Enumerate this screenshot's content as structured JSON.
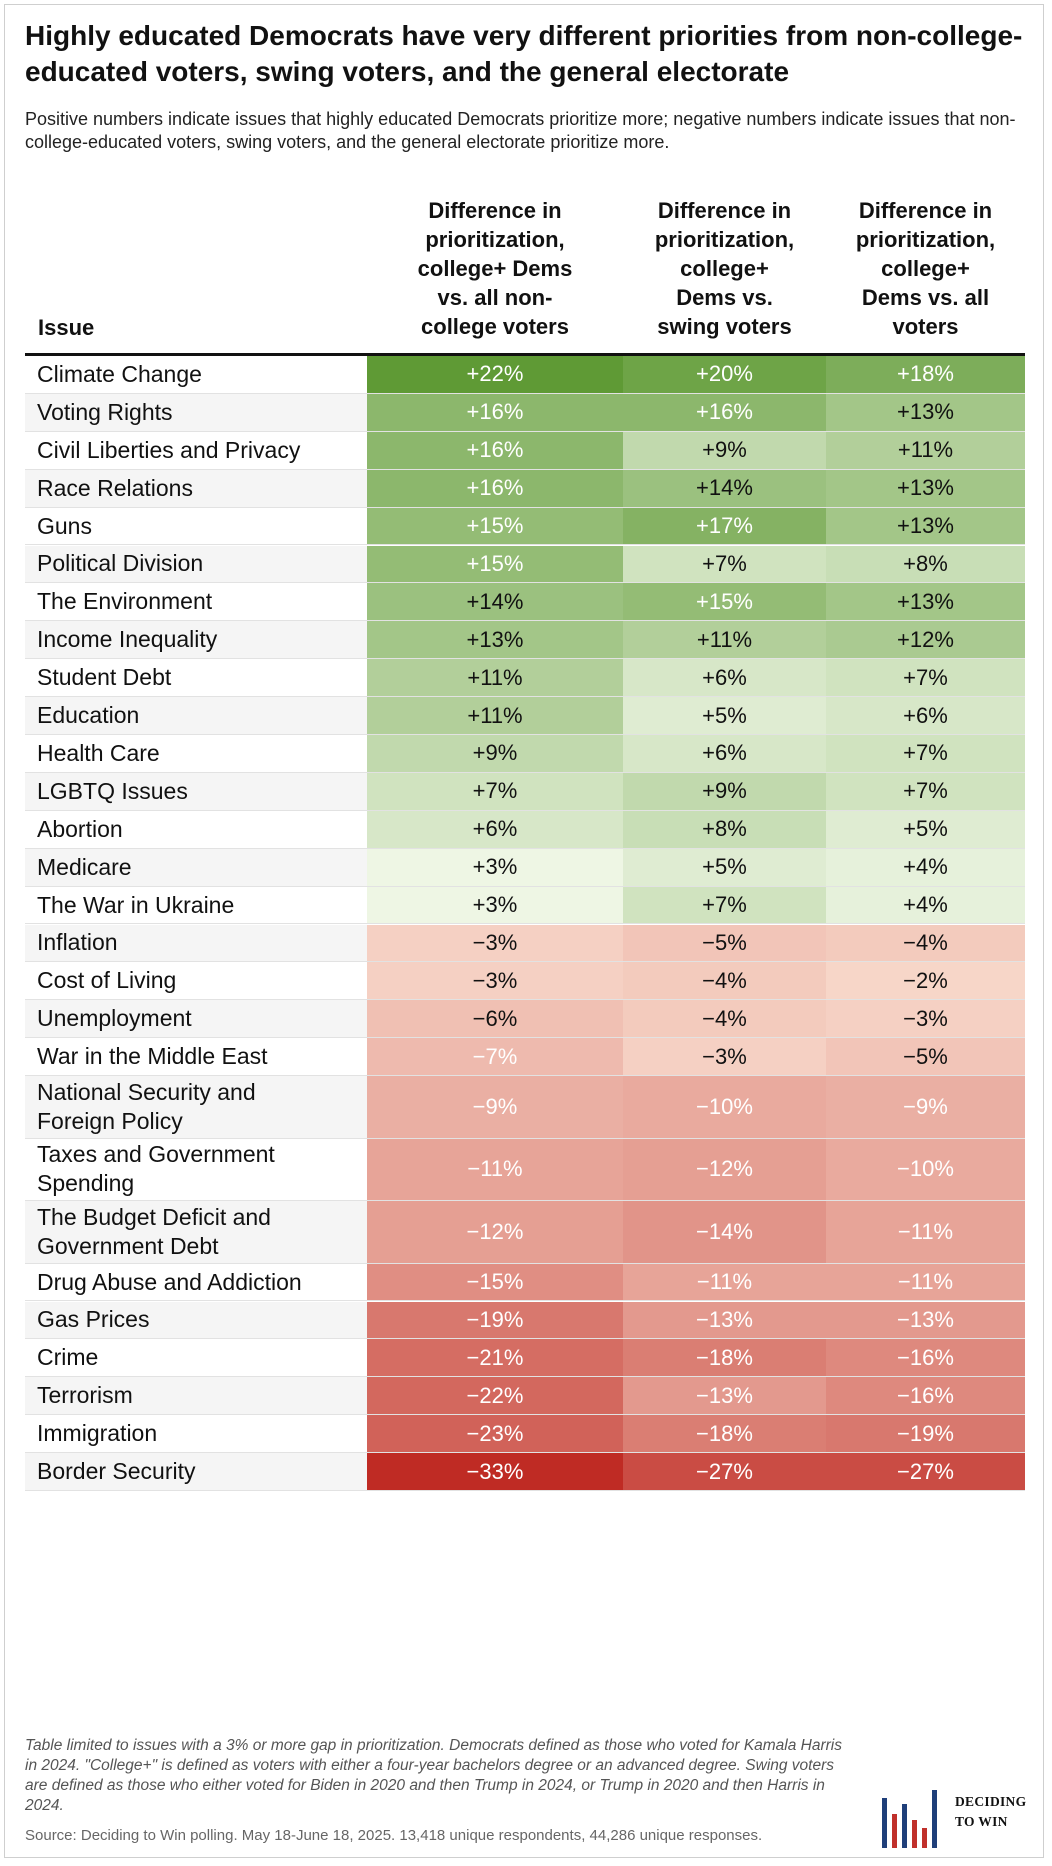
{
  "header": {
    "title": "Highly educated Democrats have very different priorities from non-college-educated voters, swing voters, and the general electorate",
    "subtitle": "Positive numbers indicate issues that highly educated Democrats prioritize more; negative numbers indicate issues that non-college-educated voters, swing voters, and the general electorate prioritize more."
  },
  "chart_data": {
    "type": "table",
    "columns": [
      "Issue",
      "Difference in prioritization, college+ Dems vs. all non-college voters",
      "Difference in prioritization, college+ Dems vs. swing voters",
      "Difference in prioritization, college+ Dems vs. all voters"
    ],
    "column_header_lines": [
      [
        "Difference in",
        "prioritization,",
        "college+ Dems",
        "vs. all non-",
        "college voters"
      ],
      [
        "Difference in",
        "prioritization,",
        "college+",
        "Dems vs.",
        "swing voters"
      ],
      [
        "Difference in",
        "prioritization,",
        "college+",
        "Dems vs. all",
        "voters"
      ]
    ],
    "rows": [
      {
        "issue": "Climate Change",
        "values": [
          22,
          20,
          18
        ]
      },
      {
        "issue": "Voting Rights",
        "values": [
          16,
          16,
          13
        ]
      },
      {
        "issue": "Civil Liberties and Privacy",
        "values": [
          16,
          9,
          11
        ]
      },
      {
        "issue": "Race Relations",
        "values": [
          16,
          14,
          13
        ]
      },
      {
        "issue": "Guns",
        "values": [
          15,
          17,
          13
        ]
      },
      {
        "issue": "Political Division",
        "values": [
          15,
          7,
          8
        ]
      },
      {
        "issue": "The Environment",
        "values": [
          14,
          15,
          13
        ]
      },
      {
        "issue": "Income Inequality",
        "values": [
          13,
          11,
          12
        ]
      },
      {
        "issue": "Student Debt",
        "values": [
          11,
          6,
          7
        ]
      },
      {
        "issue": "Education",
        "values": [
          11,
          5,
          6
        ]
      },
      {
        "issue": "Health Care",
        "values": [
          9,
          6,
          7
        ]
      },
      {
        "issue": "LGBTQ Issues",
        "values": [
          7,
          9,
          7
        ]
      },
      {
        "issue": "Abortion",
        "values": [
          6,
          8,
          5
        ]
      },
      {
        "issue": "Medicare",
        "values": [
          3,
          5,
          4
        ]
      },
      {
        "issue": "The War in Ukraine",
        "values": [
          3,
          7,
          4
        ]
      },
      {
        "issue": "Inflation",
        "values": [
          -3,
          -5,
          -4
        ]
      },
      {
        "issue": "Cost of Living",
        "values": [
          -3,
          -4,
          -2
        ]
      },
      {
        "issue": "Unemployment",
        "values": [
          -6,
          -4,
          -3
        ]
      },
      {
        "issue": "War in the Middle East",
        "values": [
          -7,
          -3,
          -5
        ]
      },
      {
        "issue": "National Security and Foreign Policy",
        "issue_lines": [
          "National Security and",
          "Foreign Policy"
        ],
        "values": [
          -9,
          -10,
          -9
        ]
      },
      {
        "issue": "Taxes and Government Spending",
        "issue_lines": [
          "Taxes and Government",
          "Spending"
        ],
        "values": [
          -11,
          -12,
          -10
        ]
      },
      {
        "issue": "The Budget Deficit and Government Debt",
        "issue_lines": [
          "The Budget Deficit and",
          "Government Debt"
        ],
        "values": [
          -12,
          -14,
          -11
        ]
      },
      {
        "issue": "Drug Abuse and Addiction",
        "values": [
          -15,
          -11,
          -11
        ]
      },
      {
        "issue": "Gas Prices",
        "values": [
          -19,
          -13,
          -13
        ]
      },
      {
        "issue": "Crime",
        "values": [
          -21,
          -18,
          -16
        ]
      },
      {
        "issue": "Terrorism",
        "values": [
          -22,
          -13,
          -16
        ]
      },
      {
        "issue": "Immigration",
        "values": [
          -23,
          -18,
          -19
        ]
      },
      {
        "issue": "Border Security",
        "values": [
          -33,
          -27,
          -27
        ]
      }
    ],
    "value_format": "signed percent",
    "colors": {
      "positive_light": "#eef6e4",
      "positive_dark": "#5f9a35",
      "negative_light": "#f7d6c8",
      "negative_dark": "#bf2b24"
    }
  },
  "footer": {
    "note": "Table limited to issues with a 3% or more gap in prioritization. Democrats defined as those who voted for Kamala Harris in 2024. \"College+\" is defined as voters with either a four-year bachelors degree or an advanced degree. Swing voters are defined as those who either voted for Biden in 2020 and then Trump in 2024, or Trump in 2020 and then Harris in 2024.",
    "source": "Source: Deciding to Win polling. May 18-June 18, 2025. 13,418 unique respondents, 44,286 unique responses.",
    "logo_line1": "DECIDING",
    "logo_line2": "TO WIN",
    "logo_colors": [
      "#1f3f7a",
      "#c0302b"
    ]
  }
}
